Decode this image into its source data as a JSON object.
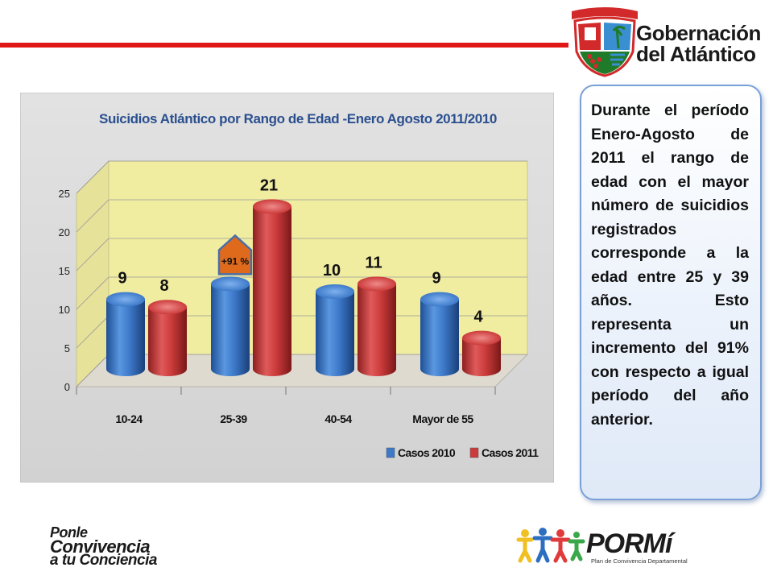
{
  "header": {
    "org_name_line1": "Gobernación",
    "org_name_line2": "del Atlántico"
  },
  "chart_data": {
    "type": "bar",
    "title": "Suicidios Atlántico  por Rango de Edad -Enero Agosto 2011/2010",
    "categories": [
      "10-24",
      "25-39",
      "40-54",
      "Mayor de 55"
    ],
    "series": [
      {
        "name": "Casos 2010",
        "values": [
          9,
          11,
          10,
          9
        ],
        "color": "#3d79c9"
      },
      {
        "name": "Casos 2011",
        "values": [
          8,
          21,
          11,
          4
        ],
        "color": "#cc3b3b"
      }
    ],
    "ylim": [
      0,
      25
    ],
    "yticks": [
      0,
      5,
      10,
      15,
      20,
      25
    ],
    "grid": true,
    "legend_position": "bottom-right",
    "annotation": "+91 %",
    "colors": {
      "wall": "#f0eca0",
      "floor": "#dedad0",
      "panel": "#dcdcdc"
    }
  },
  "side_text": "Durante el período Enero-Agosto de 2011 el rango de edad con el mayor número de suicidios registrados corresponde a la edad entre 25 y 39 años. Esto representa un incremento del 91% con respecto a igual período del año anterior.",
  "footer": {
    "campaign_line1": "Ponle",
    "campaign_line2": "Convivencia",
    "campaign_line3": "a tu Conciencia",
    "program_logo": "PORMí",
    "program_subtitle": "Plan de Convivencia Departamental"
  }
}
